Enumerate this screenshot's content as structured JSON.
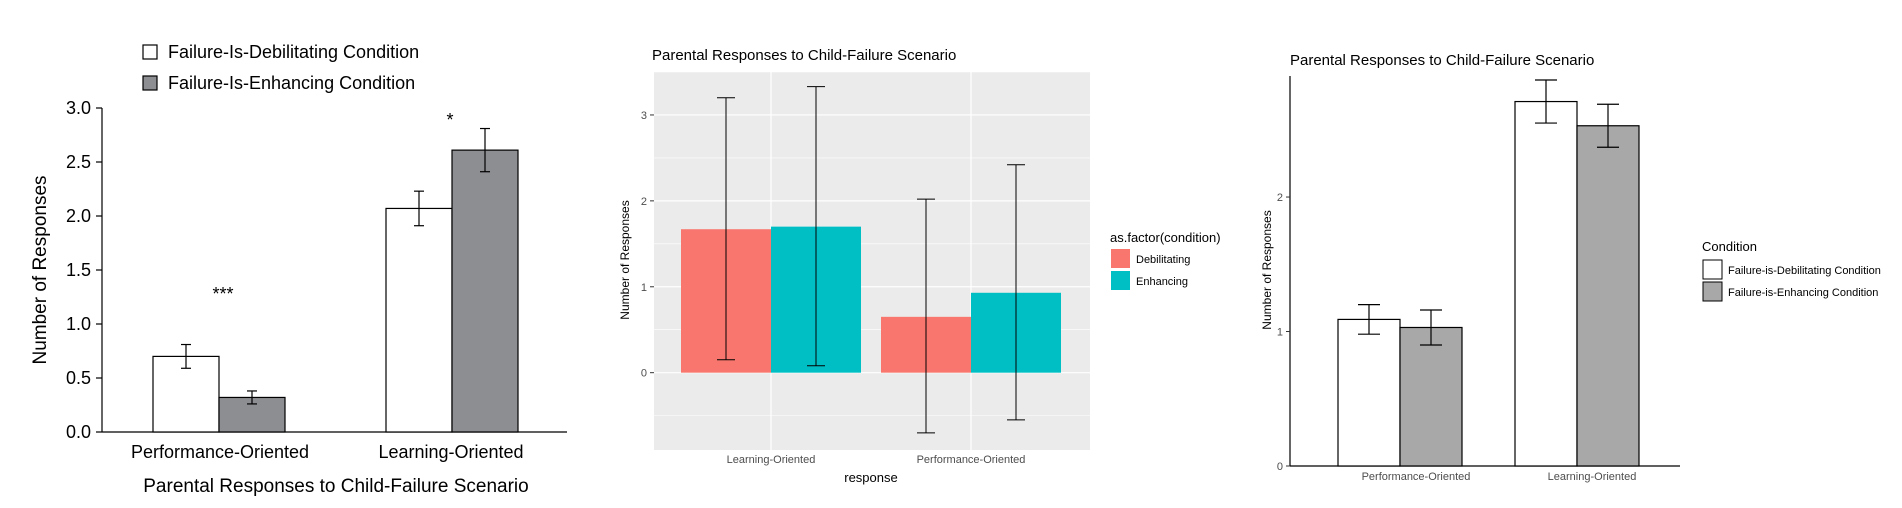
{
  "chart_data": [
    {
      "type": "bar",
      "title": "",
      "xlabel": "Parental Responses to Child-Failure Scenario",
      "ylabel": "Number of Responses",
      "categories": [
        "Performance-Oriented",
        "Learning-Oriented"
      ],
      "ylim": [
        0,
        3.0
      ],
      "yticks": [
        "0.0",
        "0.5",
        "1.0",
        "1.5",
        "2.0",
        "2.5",
        "3.0"
      ],
      "grid": false,
      "legend_position": "top-left",
      "series": [
        {
          "name": "Failure-Is-Debilitating Condition",
          "color": "#ffffff",
          "values": [
            0.7,
            2.07
          ],
          "errors": [
            0.11,
            0.16
          ]
        },
        {
          "name": "Failure-Is-Enhancing Condition",
          "color": "#8d8e92",
          "values": [
            0.32,
            2.61
          ],
          "errors": [
            0.06,
            0.2
          ]
        }
      ],
      "annotations": [
        "***",
        "*"
      ]
    },
    {
      "type": "bar",
      "title": "Parental Responses to Child-Failure Scenario",
      "xlabel": "response",
      "ylabel": "Number of Responses",
      "categories": [
        "Learning-Oriented",
        "Performance-Oriented"
      ],
      "ylim": [
        -0.9,
        3.5
      ],
      "yticks": [
        "0",
        "1",
        "2",
        "3"
      ],
      "grid": true,
      "legend_title": "as.factor(condition)",
      "legend_position": "right",
      "series": [
        {
          "name": "Debilitating",
          "color": "#f8766d",
          "values": [
            1.67,
            0.65
          ],
          "error_low": [
            0.15,
            -0.7
          ],
          "error_high": [
            3.2,
            2.02
          ]
        },
        {
          "name": "Enhancing",
          "color": "#00bfc4",
          "values": [
            1.7,
            0.93
          ],
          "error_low": [
            0.08,
            -0.55
          ],
          "error_high": [
            3.33,
            2.42
          ]
        }
      ]
    },
    {
      "type": "bar",
      "title": "Parental Responses to Child-Failure Scenario",
      "xlabel": "",
      "ylabel": "Number of Responses",
      "categories": [
        "Performance-Oriented",
        "Learning-Oriented"
      ],
      "ylim": [
        0,
        2.9
      ],
      "yticks": [
        "0",
        "1",
        "2"
      ],
      "grid": false,
      "legend_title": "Condition",
      "legend_position": "right",
      "series": [
        {
          "name": "Failure-is-Debilitating Condition",
          "color": "#ffffff",
          "values": [
            1.09,
            2.71
          ],
          "errors": [
            0.11,
            0.16
          ]
        },
        {
          "name": "Failure-is-Enhancing Condition",
          "color": "#a8a8a8",
          "values": [
            1.03,
            2.53
          ],
          "errors": [
            0.13,
            0.16
          ]
        }
      ]
    }
  ]
}
